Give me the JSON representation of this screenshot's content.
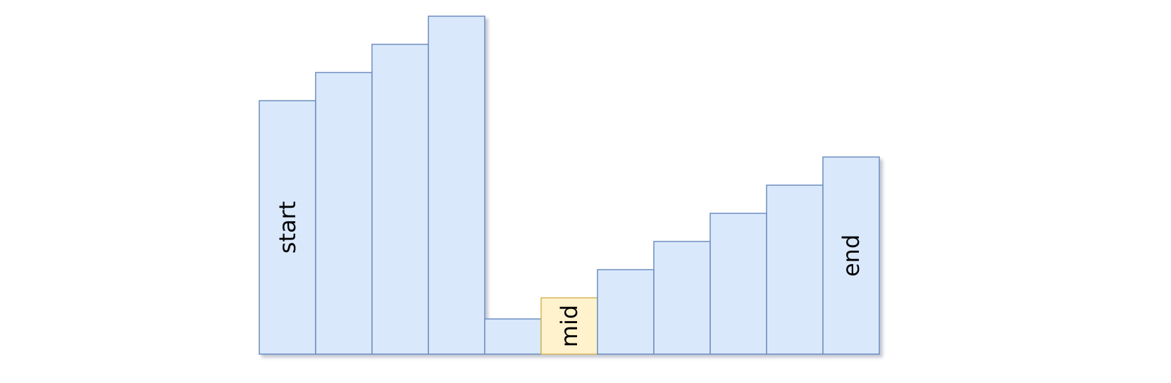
{
  "diagram": {
    "colors": {
      "default_fill": "#dae8fc",
      "default_stroke": "#6c8ebf",
      "highlight_fill": "#fff2cc",
      "highlight_stroke": "#d6b656",
      "shadow": "#b8b8c8"
    },
    "bars": [
      {
        "value": 9,
        "label": "start",
        "highlight": false
      },
      {
        "value": 10,
        "label": "",
        "highlight": false
      },
      {
        "value": 11,
        "label": "",
        "highlight": false
      },
      {
        "value": 12,
        "label": "",
        "highlight": false
      },
      {
        "value": 1.25,
        "label": "",
        "highlight": false
      },
      {
        "value": 2,
        "label": "mid",
        "highlight": true
      },
      {
        "value": 3,
        "label": "",
        "highlight": false
      },
      {
        "value": 4,
        "label": "",
        "highlight": false
      },
      {
        "value": 5,
        "label": "",
        "highlight": false
      },
      {
        "value": 6,
        "label": "",
        "highlight": false
      },
      {
        "value": 7,
        "label": "end",
        "highlight": false
      }
    ]
  }
}
